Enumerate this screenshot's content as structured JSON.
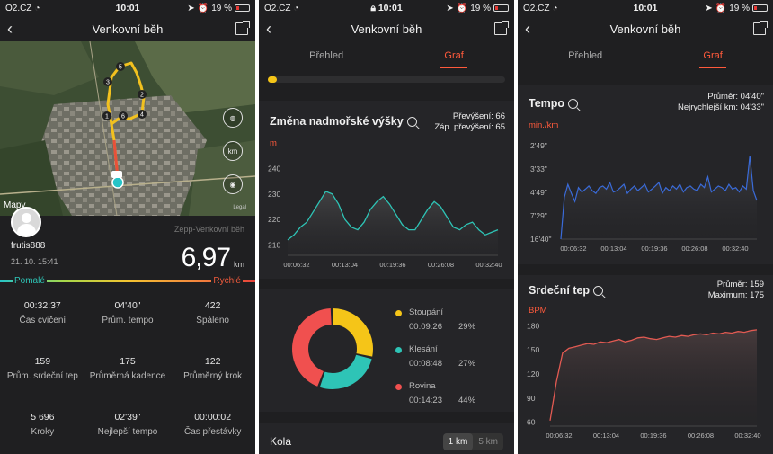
{
  "status": {
    "carrier": "O2.CZ",
    "time": "10:01",
    "battery": "19 %"
  },
  "colors": {
    "accent": "#ff5a3c",
    "teal": "#2ec4b6",
    "yellow": "#f5c518",
    "chart_line": "#3a6bd9",
    "hr_line": "#e25a52"
  },
  "screen1": {
    "title": "Venkovní běh",
    "map": {
      "brand": "Mapy",
      "legal": "Legal",
      "markers": [
        "1",
        "2",
        "3",
        "4",
        "5",
        "6"
      ],
      "ctrl_km": "km"
    },
    "source": "Zepp-Venkovní běh",
    "username": "frutis888",
    "date": "21. 10. 15:41",
    "distance": "6,97",
    "distance_unit": "km",
    "pace_slow": "Pomalé",
    "pace_fast": "Rychlé",
    "stats": [
      {
        "value": "00:32:37",
        "label": "Čas cvičení"
      },
      {
        "value": "04'40\"",
        "label": "Prům. tempo"
      },
      {
        "value": "422",
        "label": "Spáleno"
      },
      {
        "value": "159",
        "label": "Prům. srdeční tep"
      },
      {
        "value": "175",
        "label": "Průměrná kadence"
      },
      {
        "value": "122",
        "label": "Průměrný krok"
      },
      {
        "value": "5 696",
        "label": "Kroky"
      },
      {
        "value": "02'39\"",
        "label": "Nejlepší tempo"
      },
      {
        "value": "00:00:02",
        "label": "Čas přestávky"
      }
    ]
  },
  "screen2": {
    "title": "Venkovní běh",
    "tabs": [
      "Přehled",
      "Graf"
    ],
    "elevation": {
      "title": "Změna nadmořské výšky",
      "gain": "Převýšení: 66",
      "loss": "Záp. převýšení: 65",
      "unit": "m"
    },
    "donut": {
      "items": [
        {
          "name": "Stoupání",
          "time": "00:09:26",
          "pct": "29%",
          "color": "#f5c518",
          "value": 29
        },
        {
          "name": "Klesání",
          "time": "00:08:48",
          "pct": "27%",
          "color": "#2ec4b6",
          "value": 27
        },
        {
          "name": "Rovina",
          "time": "00:14:23",
          "pct": "44%",
          "color": "#f0504f",
          "value": 44
        }
      ]
    },
    "laps": {
      "title": "Kola",
      "opt1": "1 km",
      "opt2": "5 km"
    }
  },
  "screen3": {
    "title": "Venkovní běh",
    "tabs": [
      "Přehled",
      "Graf"
    ],
    "pace": {
      "title": "Tempo",
      "avg": "Průměr: 04'40\"",
      "best": "Nejrychlejší km: 04'33\"",
      "unit": "min./km"
    },
    "hr": {
      "title": "Srdeční tep",
      "avg": "Průměr: 159",
      "max": "Maximum: 175",
      "unit": "BPM"
    }
  },
  "chart_data": [
    {
      "type": "area",
      "title": "Změna nadmořské výšky",
      "ylabel": "m",
      "ylim": [
        206,
        244
      ],
      "yticks": [
        "240",
        "230",
        "220",
        "210"
      ],
      "xticks": [
        "00:06:32",
        "00:13:04",
        "00:19:36",
        "00:26:08",
        "00:32:40"
      ],
      "x_minutes": [
        0,
        1,
        2,
        3,
        4,
        5,
        6,
        7,
        8,
        9,
        10,
        11,
        12,
        13,
        14,
        15,
        16,
        17,
        18,
        19,
        20,
        21,
        22,
        23,
        24,
        25,
        26,
        27,
        28,
        29,
        30,
        31,
        32,
        33
      ],
      "values": [
        212,
        214,
        217,
        219,
        223,
        227,
        231,
        230,
        226,
        220,
        217,
        216,
        219,
        224,
        227,
        229,
        226,
        222,
        218,
        216,
        216,
        220,
        224,
        227,
        225,
        221,
        217,
        216,
        218,
        219,
        216,
        214,
        215,
        216
      ]
    },
    {
      "type": "line",
      "title": "Tempo",
      "ylabel": "min./km",
      "yticks": [
        "2'49\"",
        "3'33\"",
        "4'49\"",
        "7'29\"",
        "16'40\""
      ],
      "xticks": [
        "00:06:32",
        "00:13:04",
        "00:19:36",
        "00:26:08",
        "00:32:40"
      ],
      "values": [
        16.7,
        5.2,
        4.3,
        4.9,
        5.6,
        4.5,
        4.8,
        4.6,
        4.4,
        4.7,
        4.9,
        4.5,
        4.4,
        4.6,
        4.2,
        4.8,
        4.7,
        4.5,
        4.3,
        4.9,
        4.6,
        4.4,
        4.7,
        4.5,
        4.3,
        4.8,
        4.6,
        4.4,
        4.2,
        4.9,
        4.5,
        4.7,
        4.4,
        4.6,
        4.3,
        4.8,
        4.5,
        4.4,
        4.6,
        4.7,
        4.3,
        4.5,
        3.9,
        4.8,
        4.6,
        4.4,
        4.5,
        4.7,
        4.3,
        4.6,
        4.5,
        4.8,
        4.4,
        4.6,
        3.1,
        4.7,
        5.5
      ]
    },
    {
      "type": "area",
      "title": "Srdeční tep",
      "ylabel": "BPM",
      "ylim": [
        55,
        185
      ],
      "yticks": [
        "180",
        "150",
        "120",
        "90",
        "60"
      ],
      "xticks": [
        "00:06:32",
        "00:13:04",
        "00:19:36",
        "00:26:08",
        "00:32:40"
      ],
      "values": [
        62,
        110,
        146,
        152,
        154,
        156,
        158,
        157,
        160,
        159,
        161,
        163,
        160,
        162,
        165,
        166,
        164,
        163,
        165,
        167,
        166,
        168,
        167,
        169,
        170,
        169,
        171,
        170,
        172,
        171,
        173,
        172,
        174,
        175
      ]
    }
  ]
}
